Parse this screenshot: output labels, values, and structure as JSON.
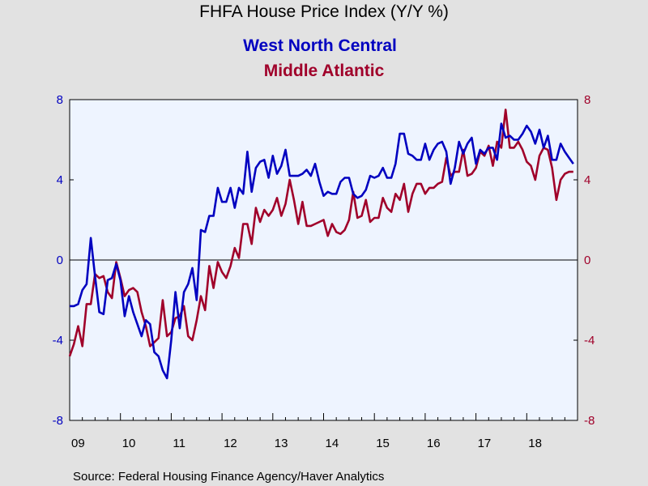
{
  "chart_data": {
    "type": "line",
    "title": "FHFA House Price Index (Y/Y %)",
    "source": "Source:  Federal Housing Finance Agency/Haver Analytics",
    "x_range": [
      2009.0,
      2019.0
    ],
    "x_tick_labels": [
      {
        "x": 2009.0,
        "label": "09"
      },
      {
        "x": 2010.0,
        "label": "10"
      },
      {
        "x": 2011.0,
        "label": "11"
      },
      {
        "x": 2012.0,
        "label": "12"
      },
      {
        "x": 2013.0,
        "label": "13"
      },
      {
        "x": 2014.0,
        "label": "14"
      },
      {
        "x": 2015.0,
        "label": "15"
      },
      {
        "x": 2016.0,
        "label": "16"
      },
      {
        "x": 2017.0,
        "label": "17"
      },
      {
        "x": 2018.0,
        "label": "18"
      }
    ],
    "y_left": {
      "range": [
        -8,
        8
      ],
      "ticks": [
        8,
        4,
        0,
        -4,
        -8
      ],
      "color": "#0000c0"
    },
    "y_right": {
      "range": [
        -8,
        8
      ],
      "ticks": [
        8,
        4,
        0,
        -4,
        -8
      ],
      "color": "#a0002a"
    },
    "zero_line": true,
    "grid": false,
    "background": "#eef4ff",
    "series": [
      {
        "name": "West North Central",
        "color": "#0000c0",
        "axis": "left",
        "points": [
          [
            2009.0,
            -2.3
          ],
          [
            2009.083,
            -2.3
          ],
          [
            2009.167,
            -2.2
          ],
          [
            2009.25,
            -1.5
          ],
          [
            2009.333,
            -1.2
          ],
          [
            2009.417,
            1.1
          ],
          [
            2009.5,
            -0.8
          ],
          [
            2009.583,
            -2.6
          ],
          [
            2009.667,
            -2.7
          ],
          [
            2009.75,
            -1.0
          ],
          [
            2009.833,
            -0.9
          ],
          [
            2009.917,
            -0.2
          ],
          [
            2010.0,
            -1.0
          ],
          [
            2010.083,
            -2.8
          ],
          [
            2010.167,
            -1.8
          ],
          [
            2010.25,
            -2.6
          ],
          [
            2010.333,
            -3.2
          ],
          [
            2010.417,
            -3.8
          ],
          [
            2010.5,
            -3.0
          ],
          [
            2010.583,
            -3.2
          ],
          [
            2010.667,
            -4.6
          ],
          [
            2010.75,
            -4.8
          ],
          [
            2010.833,
            -5.5
          ],
          [
            2010.917,
            -5.9
          ],
          [
            2011.0,
            -4.0
          ],
          [
            2011.083,
            -1.6
          ],
          [
            2011.167,
            -3.4
          ],
          [
            2011.25,
            -1.6
          ],
          [
            2011.333,
            -1.2
          ],
          [
            2011.417,
            -0.4
          ],
          [
            2011.5,
            -2.0
          ],
          [
            2011.583,
            1.5
          ],
          [
            2011.667,
            1.4
          ],
          [
            2011.75,
            2.2
          ],
          [
            2011.833,
            2.2
          ],
          [
            2011.917,
            3.6
          ],
          [
            2012.0,
            2.9
          ],
          [
            2012.083,
            2.9
          ],
          [
            2012.167,
            3.6
          ],
          [
            2012.25,
            2.6
          ],
          [
            2012.333,
            3.6
          ],
          [
            2012.417,
            3.3
          ],
          [
            2012.5,
            5.4
          ],
          [
            2012.583,
            3.4
          ],
          [
            2012.667,
            4.6
          ],
          [
            2012.75,
            4.9
          ],
          [
            2012.833,
            5.0
          ],
          [
            2012.917,
            4.1
          ],
          [
            2013.0,
            5.2
          ],
          [
            2013.083,
            4.3
          ],
          [
            2013.167,
            4.7
          ],
          [
            2013.25,
            5.5
          ],
          [
            2013.333,
            4.2
          ],
          [
            2013.417,
            4.2
          ],
          [
            2013.5,
            4.2
          ],
          [
            2013.583,
            4.3
          ],
          [
            2013.667,
            4.5
          ],
          [
            2013.75,
            4.2
          ],
          [
            2013.833,
            4.8
          ],
          [
            2013.917,
            3.9
          ],
          [
            2014.0,
            3.2
          ],
          [
            2014.083,
            3.4
          ],
          [
            2014.167,
            3.3
          ],
          [
            2014.25,
            3.3
          ],
          [
            2014.333,
            3.9
          ],
          [
            2014.417,
            4.1
          ],
          [
            2014.5,
            4.1
          ],
          [
            2014.583,
            3.3
          ],
          [
            2014.667,
            3.1
          ],
          [
            2014.75,
            3.2
          ],
          [
            2014.833,
            3.5
          ],
          [
            2014.917,
            4.2
          ],
          [
            2015.0,
            4.1
          ],
          [
            2015.083,
            4.2
          ],
          [
            2015.167,
            4.6
          ],
          [
            2015.25,
            4.1
          ],
          [
            2015.333,
            4.1
          ],
          [
            2015.417,
            4.8
          ],
          [
            2015.5,
            6.3
          ],
          [
            2015.583,
            6.3
          ],
          [
            2015.667,
            5.3
          ],
          [
            2015.75,
            5.2
          ],
          [
            2015.833,
            5.0
          ],
          [
            2015.917,
            5.0
          ],
          [
            2016.0,
            5.8
          ],
          [
            2016.083,
            5.0
          ],
          [
            2016.167,
            5.5
          ],
          [
            2016.25,
            5.8
          ],
          [
            2016.333,
            5.9
          ],
          [
            2016.417,
            5.4
          ],
          [
            2016.5,
            3.8
          ],
          [
            2016.583,
            4.6
          ],
          [
            2016.667,
            5.9
          ],
          [
            2016.75,
            5.3
          ],
          [
            2016.833,
            5.8
          ],
          [
            2016.917,
            6.1
          ],
          [
            2017.0,
            4.8
          ],
          [
            2017.083,
            5.5
          ],
          [
            2017.167,
            5.3
          ],
          [
            2017.25,
            5.6
          ],
          [
            2017.333,
            5.6
          ],
          [
            2017.417,
            5.0
          ],
          [
            2017.5,
            6.8
          ],
          [
            2017.583,
            6.1
          ],
          [
            2017.667,
            6.2
          ],
          [
            2017.75,
            6.0
          ],
          [
            2017.833,
            6.0
          ],
          [
            2017.917,
            6.3
          ],
          [
            2018.0,
            6.7
          ],
          [
            2018.083,
            6.4
          ],
          [
            2018.167,
            5.8
          ],
          [
            2018.25,
            6.5
          ],
          [
            2018.333,
            5.6
          ],
          [
            2018.417,
            6.2
          ],
          [
            2018.5,
            5.0
          ],
          [
            2018.583,
            5.0
          ],
          [
            2018.667,
            5.8
          ],
          [
            2018.75,
            5.4
          ],
          [
            2018.833,
            5.1
          ],
          [
            2018.917,
            4.8
          ]
        ]
      },
      {
        "name": "Middle Atlantic",
        "color": "#a0002a",
        "axis": "right",
        "points": [
          [
            2009.0,
            -4.8
          ],
          [
            2009.083,
            -4.2
          ],
          [
            2009.167,
            -3.3
          ],
          [
            2009.25,
            -4.3
          ],
          [
            2009.333,
            -2.2
          ],
          [
            2009.417,
            -2.2
          ],
          [
            2009.5,
            -0.7
          ],
          [
            2009.583,
            -0.9
          ],
          [
            2009.667,
            -0.8
          ],
          [
            2009.75,
            -1.6
          ],
          [
            2009.833,
            -1.9
          ],
          [
            2009.917,
            -0.1
          ],
          [
            2010.0,
            -0.9
          ],
          [
            2010.083,
            -1.8
          ],
          [
            2010.167,
            -1.5
          ],
          [
            2010.25,
            -1.4
          ],
          [
            2010.333,
            -1.6
          ],
          [
            2010.417,
            -2.6
          ],
          [
            2010.5,
            -3.3
          ],
          [
            2010.583,
            -4.3
          ],
          [
            2010.667,
            -4.1
          ],
          [
            2010.75,
            -3.9
          ],
          [
            2010.833,
            -2.0
          ],
          [
            2010.917,
            -3.8
          ],
          [
            2011.0,
            -3.6
          ],
          [
            2011.083,
            -2.9
          ],
          [
            2011.167,
            -2.8
          ],
          [
            2011.25,
            -2.3
          ],
          [
            2011.333,
            -3.8
          ],
          [
            2011.417,
            -4.0
          ],
          [
            2011.5,
            -3.0
          ],
          [
            2011.583,
            -1.8
          ],
          [
            2011.667,
            -2.5
          ],
          [
            2011.75,
            -0.3
          ],
          [
            2011.833,
            -1.4
          ],
          [
            2011.917,
            -0.1
          ],
          [
            2012.0,
            -0.6
          ],
          [
            2012.083,
            -0.9
          ],
          [
            2012.167,
            -0.3
          ],
          [
            2012.25,
            0.6
          ],
          [
            2012.333,
            0.1
          ],
          [
            2012.417,
            1.8
          ],
          [
            2012.5,
            1.8
          ],
          [
            2012.583,
            0.8
          ],
          [
            2012.667,
            2.6
          ],
          [
            2012.75,
            1.9
          ],
          [
            2012.833,
            2.5
          ],
          [
            2012.917,
            2.2
          ],
          [
            2013.0,
            2.5
          ],
          [
            2013.083,
            3.1
          ],
          [
            2013.167,
            2.2
          ],
          [
            2013.25,
            2.8
          ],
          [
            2013.333,
            4.0
          ],
          [
            2013.417,
            3.0
          ],
          [
            2013.5,
            1.8
          ],
          [
            2013.583,
            2.9
          ],
          [
            2013.667,
            1.7
          ],
          [
            2013.75,
            1.7
          ],
          [
            2013.833,
            1.8
          ],
          [
            2013.917,
            1.9
          ],
          [
            2014.0,
            2.0
          ],
          [
            2014.083,
            1.2
          ],
          [
            2014.167,
            1.8
          ],
          [
            2014.25,
            1.4
          ],
          [
            2014.333,
            1.3
          ],
          [
            2014.417,
            1.5
          ],
          [
            2014.5,
            2.0
          ],
          [
            2014.583,
            3.4
          ],
          [
            2014.667,
            2.1
          ],
          [
            2014.75,
            2.2
          ],
          [
            2014.833,
            3.0
          ],
          [
            2014.917,
            1.9
          ],
          [
            2015.0,
            2.1
          ],
          [
            2015.083,
            2.1
          ],
          [
            2015.167,
            3.1
          ],
          [
            2015.25,
            2.6
          ],
          [
            2015.333,
            2.4
          ],
          [
            2015.417,
            3.3
          ],
          [
            2015.5,
            3.0
          ],
          [
            2015.583,
            3.8
          ],
          [
            2015.667,
            2.4
          ],
          [
            2015.75,
            3.3
          ],
          [
            2015.833,
            3.8
          ],
          [
            2015.917,
            3.8
          ],
          [
            2016.0,
            3.3
          ],
          [
            2016.083,
            3.6
          ],
          [
            2016.167,
            3.6
          ],
          [
            2016.25,
            3.8
          ],
          [
            2016.333,
            3.9
          ],
          [
            2016.417,
            5.1
          ],
          [
            2016.5,
            4.2
          ],
          [
            2016.583,
            4.4
          ],
          [
            2016.667,
            4.4
          ],
          [
            2016.75,
            5.5
          ],
          [
            2016.833,
            4.2
          ],
          [
            2016.917,
            4.3
          ],
          [
            2017.0,
            4.6
          ],
          [
            2017.083,
            5.4
          ],
          [
            2017.167,
            5.2
          ],
          [
            2017.25,
            5.7
          ],
          [
            2017.333,
            4.7
          ],
          [
            2017.417,
            5.9
          ],
          [
            2017.5,
            5.6
          ],
          [
            2017.583,
            7.5
          ],
          [
            2017.667,
            5.6
          ],
          [
            2017.75,
            5.6
          ],
          [
            2017.833,
            5.9
          ],
          [
            2017.917,
            5.5
          ],
          [
            2018.0,
            4.9
          ],
          [
            2018.083,
            4.7
          ],
          [
            2018.167,
            4.0
          ],
          [
            2018.25,
            5.2
          ],
          [
            2018.333,
            5.6
          ],
          [
            2018.417,
            5.5
          ],
          [
            2018.5,
            4.6
          ],
          [
            2018.583,
            3.0
          ],
          [
            2018.667,
            4.0
          ],
          [
            2018.75,
            4.3
          ],
          [
            2018.833,
            4.4
          ],
          [
            2018.917,
            4.4
          ]
        ]
      }
    ]
  }
}
